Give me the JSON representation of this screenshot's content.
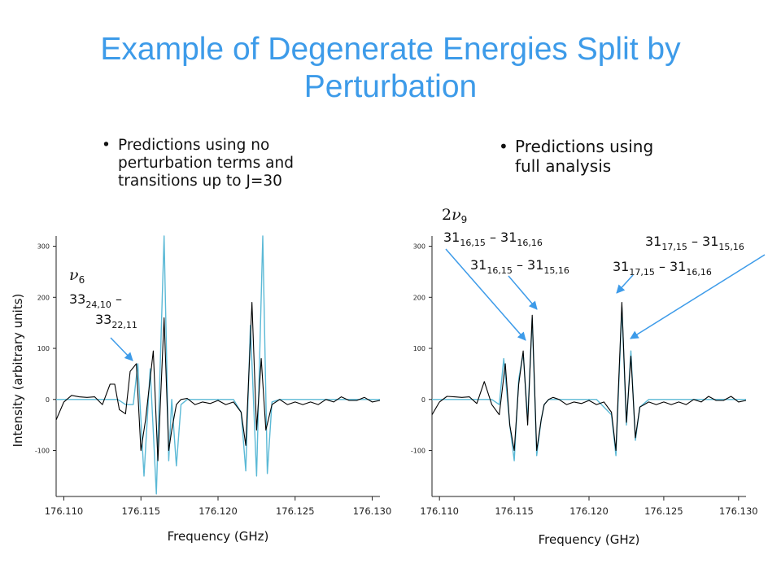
{
  "title": "Example of Degenerate Energies Split by Perturbation",
  "bullets": {
    "left": "Predictions using no perturbation terms and transitions up to J=30",
    "right": "Predictions using full analysis",
    "dot": "•"
  },
  "colors": {
    "title": "#3d9be9",
    "observed": "#000000",
    "predicted": "#5bb9d6",
    "arrow": "#3d9be9"
  },
  "chart_data": [
    {
      "type": "line",
      "xlabel": "Frequency (GHz)",
      "ylabel": "Intensity (arbitrary units)",
      "xlim": [
        176.1095,
        176.1305
      ],
      "ylim": [
        -190,
        320
      ],
      "xticks": [
        "176.110",
        "176.115",
        "176.120",
        "176.125",
        "176.130"
      ],
      "xtick_values": [
        176.11,
        176.115,
        176.12,
        176.125,
        176.13
      ],
      "yticks": [
        "300",
        "200",
        "100",
        "0",
        "-100"
      ],
      "ytick_values": [
        300,
        200,
        100,
        0,
        -100
      ],
      "series": [
        {
          "color": "#000000",
          "x": [
            176.1095,
            176.11,
            176.1105,
            176.111,
            176.1115,
            176.112,
            176.1125,
            176.113,
            176.1133,
            176.1136,
            176.114,
            176.1143,
            176.1147,
            176.115,
            176.1153,
            176.1158,
            176.1161,
            176.1165,
            176.1168,
            176.117,
            176.1173,
            176.1176,
            176.118,
            176.1185,
            176.119,
            176.1195,
            176.12,
            176.1205,
            176.121,
            176.1215,
            176.1218,
            176.1222,
            176.1225,
            176.1228,
            176.1231,
            176.1235,
            176.124,
            176.1245,
            176.125,
            176.1255,
            176.126,
            176.1265,
            176.127,
            176.1275,
            176.128,
            176.1285,
            176.129,
            176.1295,
            176.13,
            176.1305
          ],
          "y": [
            -40,
            -5,
            8,
            5,
            4,
            5,
            -10,
            30,
            30,
            -20,
            -28,
            55,
            70,
            -100,
            -40,
            95,
            -120,
            160,
            -100,
            -60,
            -10,
            0,
            2,
            -10,
            -5,
            -8,
            -2,
            -10,
            -5,
            -25,
            -90,
            190,
            -60,
            80,
            -60,
            -10,
            0,
            -10,
            -5,
            -10,
            -5,
            -10,
            0,
            -5,
            5,
            -2,
            -2,
            4,
            -5,
            -2
          ]
        },
        {
          "color": "#5bb9d6",
          "x": [
            176.1095,
            176.11,
            176.1105,
            176.111,
            176.1115,
            176.112,
            176.1125,
            176.113,
            176.1135,
            176.114,
            176.1145,
            176.1148,
            176.1152,
            176.1156,
            176.116,
            176.1165,
            176.1168,
            176.117,
            176.1173,
            176.1176,
            176.118,
            176.1185,
            176.119,
            176.1195,
            176.12,
            176.1205,
            176.121,
            176.1215,
            176.1218,
            176.1221,
            176.1225,
            176.1229,
            176.1232,
            176.1235,
            176.124,
            176.1245,
            176.125,
            176.126,
            176.127,
            176.128,
            176.129,
            176.13,
            176.1305
          ],
          "y": [
            0,
            0,
            0,
            0,
            0,
            0,
            0,
            0,
            0,
            -10,
            -10,
            70,
            -150,
            60,
            -185,
            320,
            -120,
            0,
            -130,
            -10,
            0,
            0,
            0,
            0,
            0,
            0,
            0,
            -25,
            -140,
            145,
            -150,
            320,
            -145,
            -5,
            0,
            0,
            0,
            0,
            0,
            0,
            0,
            0,
            0
          ]
        }
      ]
    },
    {
      "type": "line",
      "xlabel": "Frequency (GHz)",
      "ylabel": "",
      "xlim": [
        176.1095,
        176.1305
      ],
      "ylim": [
        -190,
        320
      ],
      "xticks": [
        "176.110",
        "176.115",
        "176.120",
        "176.125",
        "176.130"
      ],
      "xtick_values": [
        176.11,
        176.115,
        176.12,
        176.125,
        176.13
      ],
      "yticks": [
        "300",
        "200",
        "100",
        "0",
        "-100"
      ],
      "ytick_values": [
        300,
        200,
        100,
        0,
        -100
      ],
      "series": [
        {
          "color": "#000000",
          "x": [
            176.1095,
            176.11,
            176.1105,
            176.111,
            176.1115,
            176.112,
            176.1125,
            176.113,
            176.1135,
            176.114,
            176.1144,
            176.1147,
            176.115,
            176.1153,
            176.1156,
            176.1159,
            176.1162,
            176.1165,
            176.1168,
            176.117,
            176.1173,
            176.1176,
            176.118,
            176.1185,
            176.119,
            176.1195,
            176.12,
            176.1205,
            176.121,
            176.1215,
            176.1218,
            176.1222,
            176.1225,
            176.1228,
            176.1231,
            176.1234,
            176.124,
            176.1245,
            176.125,
            176.1255,
            176.126,
            176.1265,
            176.127,
            176.1275,
            176.128,
            176.1285,
            176.129,
            176.1295,
            176.13,
            176.1305
          ],
          "y": [
            -30,
            -5,
            6,
            5,
            4,
            5,
            -8,
            35,
            -10,
            -30,
            70,
            -50,
            -100,
            30,
            95,
            -50,
            165,
            -100,
            -40,
            -10,
            0,
            4,
            0,
            -10,
            -5,
            -8,
            -2,
            -10,
            -5,
            -25,
            -100,
            190,
            -45,
            85,
            -75,
            -15,
            -5,
            -10,
            -5,
            -10,
            -5,
            -10,
            0,
            -5,
            6,
            -2,
            -2,
            6,
            -5,
            -2
          ]
        },
        {
          "color": "#5bb9d6",
          "x": [
            176.1095,
            176.11,
            176.1105,
            176.111,
            176.1115,
            176.112,
            176.1125,
            176.113,
            176.1135,
            176.114,
            176.1143,
            176.1147,
            176.115,
            176.1153,
            176.1156,
            176.1159,
            176.1162,
            176.1165,
            176.1168,
            176.117,
            176.1173,
            176.1176,
            176.118,
            176.1185,
            176.119,
            176.1195,
            176.12,
            176.1205,
            176.121,
            176.1215,
            176.1218,
            176.1222,
            176.1225,
            176.1228,
            176.1231,
            176.1234,
            176.124,
            176.1245,
            176.125,
            176.126,
            176.127,
            176.128,
            176.129,
            176.13,
            176.1305
          ],
          "y": [
            0,
            0,
            0,
            0,
            0,
            0,
            0,
            0,
            0,
            -10,
            80,
            -50,
            -120,
            40,
            90,
            -40,
            160,
            -110,
            -40,
            -10,
            0,
            0,
            0,
            0,
            0,
            0,
            0,
            0,
            -15,
            -30,
            -110,
            180,
            -50,
            95,
            -80,
            -15,
            0,
            0,
            0,
            0,
            0,
            0,
            0,
            0,
            0
          ]
        }
      ]
    }
  ],
  "annotations": {
    "left_mode": {
      "sym": "ν",
      "sub": "6"
    },
    "left_line1": {
      "base": "33",
      "sub": "24,10",
      "tail": " –"
    },
    "left_line2": {
      "base": "33",
      "sub": "22,11"
    },
    "right_mode": {
      "prefix": "2",
      "sym": "ν",
      "sub": "9"
    },
    "a": {
      "b1": "31",
      "s1": "16,15",
      "mid": " – 31",
      "s2": "16,16"
    },
    "b": {
      "b1": "31",
      "s1": "16,15",
      "mid": " – 31",
      "s2": "15,16"
    },
    "c": {
      "b1": "31",
      "s1": "17,15",
      "mid": " – 31",
      "s2": "15,16"
    },
    "d": {
      "b1": "31",
      "s1": "17,15",
      "mid": " – 31",
      "s2": "16,16"
    }
  }
}
